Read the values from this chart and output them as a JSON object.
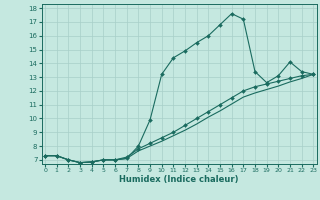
{
  "xlabel": "Humidex (Indice chaleur)",
  "bg_color": "#c5e8e0",
  "grid_color": "#a8cfc8",
  "line_color": "#1a6b5f",
  "xlim": [
    0,
    23
  ],
  "ylim": [
    7,
    18
  ],
  "xticks": [
    0,
    1,
    2,
    3,
    4,
    5,
    6,
    7,
    8,
    9,
    10,
    11,
    12,
    13,
    14,
    15,
    16,
    17,
    18,
    19,
    20,
    21,
    22,
    23
  ],
  "yticks": [
    7,
    8,
    9,
    10,
    11,
    12,
    13,
    14,
    15,
    16,
    17,
    18
  ],
  "curve1_x": [
    0,
    1,
    2,
    3,
    4,
    5,
    6,
    7,
    8,
    9,
    10,
    11,
    12,
    13,
    14,
    15,
    16,
    17,
    18,
    19,
    20,
    21,
    22,
    23
  ],
  "curve1_y": [
    7.3,
    7.3,
    7.0,
    6.8,
    6.85,
    7.0,
    7.0,
    7.1,
    8.0,
    9.9,
    13.2,
    14.4,
    14.9,
    15.5,
    16.0,
    16.8,
    17.6,
    17.2,
    13.4,
    12.6,
    13.1,
    14.1,
    13.4,
    13.2
  ],
  "curve2_x": [
    0,
    1,
    2,
    3,
    4,
    5,
    6,
    7,
    8,
    9,
    10,
    11,
    12,
    13,
    14,
    15,
    16,
    17,
    18,
    19,
    20,
    21,
    22,
    23
  ],
  "curve2_y": [
    7.3,
    7.3,
    7.0,
    6.8,
    6.85,
    7.0,
    7.0,
    7.2,
    7.8,
    8.2,
    8.6,
    9.0,
    9.5,
    10.0,
    10.5,
    11.0,
    11.5,
    12.0,
    12.3,
    12.5,
    12.7,
    12.9,
    13.1,
    13.2
  ],
  "curve3_x": [
    0,
    1,
    2,
    3,
    4,
    5,
    6,
    7,
    8,
    9,
    10,
    11,
    12,
    13,
    14,
    15,
    16,
    17,
    18,
    19,
    20,
    21,
    22,
    23
  ],
  "curve3_y": [
    7.3,
    7.3,
    7.0,
    6.8,
    6.85,
    7.0,
    7.0,
    7.1,
    7.65,
    8.0,
    8.35,
    8.75,
    9.15,
    9.6,
    10.1,
    10.55,
    11.05,
    11.55,
    11.85,
    12.1,
    12.35,
    12.65,
    12.9,
    13.2
  ]
}
